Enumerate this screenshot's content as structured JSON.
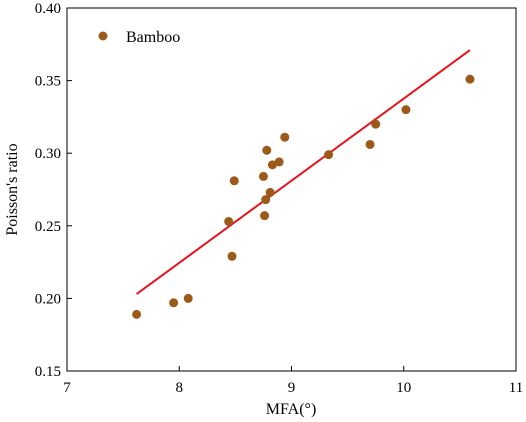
{
  "chart_data": {
    "type": "scatter",
    "title": "",
    "xlabel": "MFA(°)",
    "ylabel": "Poisson's ratio",
    "xlim": [
      7,
      11
    ],
    "ylim": [
      0.15,
      0.4
    ],
    "xticks": [
      "7",
      "8",
      "9",
      "10",
      "11"
    ],
    "yticks": [
      "0.15",
      "0.20",
      "0.25",
      "0.30",
      "0.35",
      "0.40"
    ],
    "grid": false,
    "legend_position": "top-left",
    "series": [
      {
        "name": "Bamboo",
        "color": "#9c5a1a",
        "points": [
          [
            7.62,
            0.189
          ],
          [
            7.95,
            0.197
          ],
          [
            8.08,
            0.2
          ],
          [
            8.44,
            0.253
          ],
          [
            8.47,
            0.229
          ],
          [
            8.49,
            0.281
          ],
          [
            8.75,
            0.284
          ],
          [
            8.76,
            0.257
          ],
          [
            8.77,
            0.268
          ],
          [
            8.78,
            0.302
          ],
          [
            8.81,
            0.273
          ],
          [
            8.83,
            0.292
          ],
          [
            8.89,
            0.294
          ],
          [
            8.94,
            0.311
          ],
          [
            9.33,
            0.299
          ],
          [
            9.7,
            0.306
          ],
          [
            9.75,
            0.32
          ],
          [
            10.02,
            0.33
          ],
          [
            10.59,
            0.351
          ]
        ]
      }
    ],
    "fit_line": {
      "color": "#e8141b",
      "x": [
        7.62,
        10.59
      ],
      "y": [
        0.203,
        0.371
      ]
    }
  }
}
